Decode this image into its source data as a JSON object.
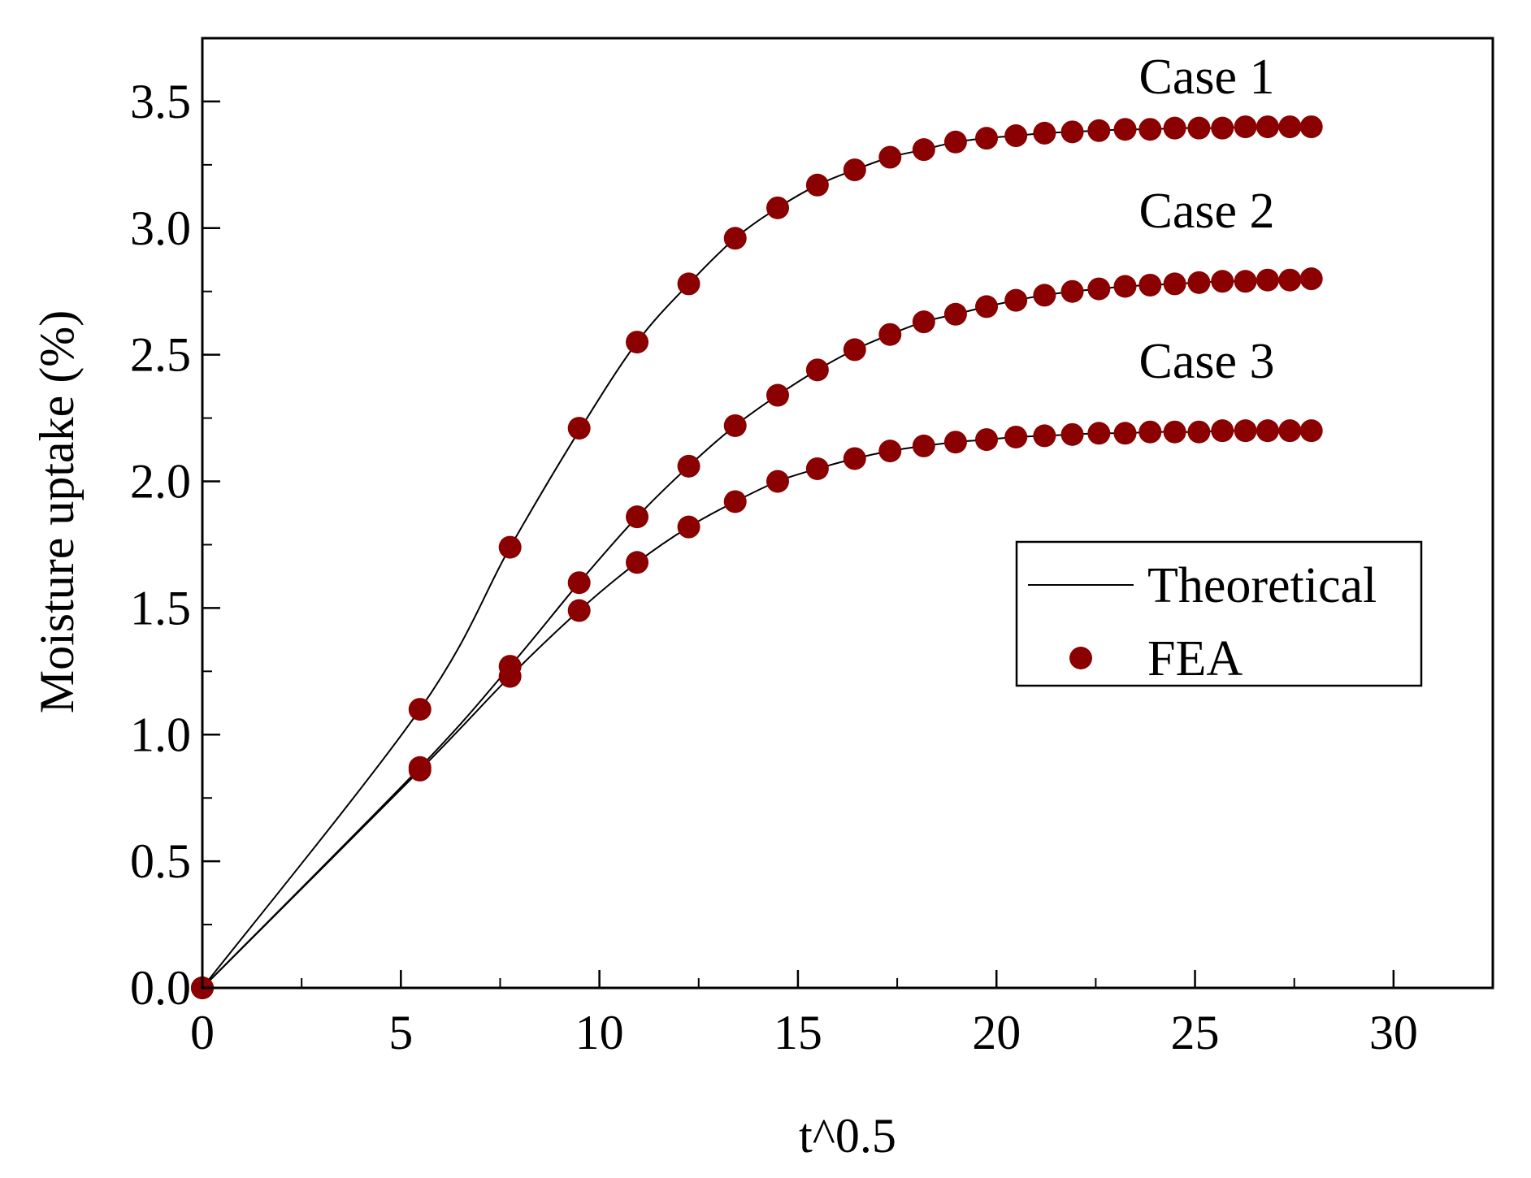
{
  "chart_data": {
    "type": "line",
    "xlabel": "t^0.5",
    "ylabel": "Moisture uptake (%)",
    "xlim": [
      0,
      32.5
    ],
    "ylim": [
      0,
      3.75
    ],
    "x_ticks": [
      0,
      5,
      10,
      15,
      20,
      25,
      30
    ],
    "x_tick_labels": [
      "0",
      "5",
      "10",
      "15",
      "20",
      "25",
      "30"
    ],
    "y_ticks": [
      0.0,
      0.5,
      1.0,
      1.5,
      2.0,
      2.5,
      3.0,
      3.5
    ],
    "y_tick_labels": [
      "0.0",
      "0.5",
      "1.0",
      "1.5",
      "2.0",
      "2.5",
      "3.0",
      "3.5"
    ],
    "grid": false,
    "legend": {
      "placement": "center-right",
      "entries": [
        {
          "label": "Theoretical",
          "kind": "line",
          "color": "#000000"
        },
        {
          "label": "FEA",
          "kind": "marker",
          "color": "#8b0000"
        }
      ]
    },
    "line_color": "#000000",
    "marker_color": "#8b0000",
    "x": [
      0,
      5.48,
      7.75,
      9.49,
      10.95,
      12.25,
      13.42,
      14.49,
      15.49,
      16.43,
      17.32,
      18.17,
      18.97,
      19.75,
      20.49,
      21.21,
      21.91,
      22.58,
      23.24,
      23.87,
      24.49,
      25.1,
      25.69,
      26.27,
      26.83,
      27.39,
      27.93
    ],
    "series": [
      {
        "name": "Case 1",
        "label": "Case 1",
        "theoretical": [
          0,
          1.1,
          1.74,
          2.2,
          2.55,
          2.78,
          2.96,
          3.08,
          3.17,
          3.23,
          3.28,
          3.31,
          3.34,
          3.355,
          3.365,
          3.375,
          3.38,
          3.385,
          3.39,
          3.39,
          3.395,
          3.395,
          3.395,
          3.4,
          3.4,
          3.4,
          3.4
        ],
        "fea": [
          0,
          1.1,
          1.74,
          2.21,
          2.55,
          2.78,
          2.96,
          3.08,
          3.17,
          3.23,
          3.28,
          3.31,
          3.34,
          3.355,
          3.365,
          3.375,
          3.38,
          3.385,
          3.39,
          3.39,
          3.395,
          3.395,
          3.395,
          3.4,
          3.4,
          3.4,
          3.4
        ]
      },
      {
        "name": "Case 2",
        "label": "Case 2",
        "theoretical": [
          0,
          0.87,
          1.27,
          1.6,
          1.86,
          2.06,
          2.22,
          2.34,
          2.44,
          2.52,
          2.58,
          2.63,
          2.66,
          2.69,
          2.715,
          2.735,
          2.75,
          2.76,
          2.77,
          2.775,
          2.78,
          2.785,
          2.79,
          2.79,
          2.795,
          2.795,
          2.8
        ],
        "fea": [
          0,
          0.87,
          1.27,
          1.6,
          1.86,
          2.06,
          2.22,
          2.34,
          2.44,
          2.52,
          2.58,
          2.63,
          2.66,
          2.69,
          2.715,
          2.735,
          2.75,
          2.76,
          2.77,
          2.775,
          2.78,
          2.785,
          2.79,
          2.79,
          2.795,
          2.795,
          2.8
        ]
      },
      {
        "name": "Case 3",
        "label": "Case 3",
        "theoretical": [
          0,
          0.86,
          1.23,
          1.49,
          1.68,
          1.82,
          1.92,
          2.0,
          2.05,
          2.09,
          2.12,
          2.14,
          2.155,
          2.165,
          2.175,
          2.18,
          2.185,
          2.19,
          2.19,
          2.195,
          2.195,
          2.195,
          2.2,
          2.2,
          2.2,
          2.2,
          2.2
        ],
        "fea": [
          0,
          0.86,
          1.23,
          1.49,
          1.68,
          1.82,
          1.92,
          2.0,
          2.05,
          2.09,
          2.12,
          2.14,
          2.155,
          2.165,
          2.175,
          2.18,
          2.185,
          2.19,
          2.19,
          2.195,
          2.195,
          2.195,
          2.2,
          2.2,
          2.2,
          2.2,
          2.2
        ]
      }
    ]
  }
}
